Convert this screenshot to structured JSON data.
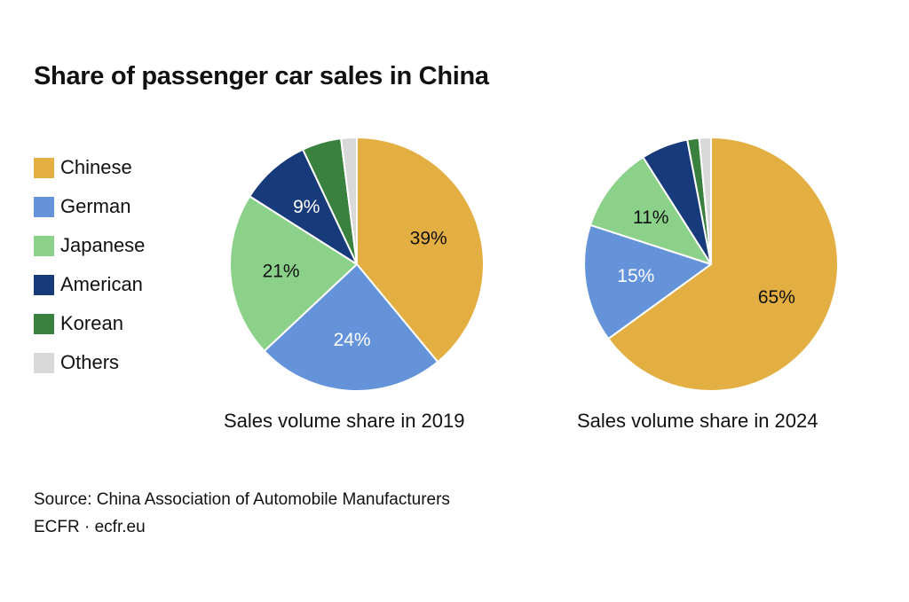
{
  "title": "Share of passenger car sales in China",
  "legend": [
    {
      "label": "Chinese",
      "color": "#E3AE42"
    },
    {
      "label": "German",
      "color": "#6493DA"
    },
    {
      "label": "Japanese",
      "color": "#8CD18A"
    },
    {
      "label": "American",
      "color": "#173B7A"
    },
    {
      "label": "Korean",
      "color": "#3A8140"
    },
    {
      "label": "Others",
      "color": "#D9D9D9"
    }
  ],
  "chart_data": [
    {
      "type": "pie",
      "caption": "Sales volume share in 2019",
      "slices": [
        {
          "name": "Chinese",
          "value": 39,
          "label": "39%",
          "color": "#E3AE42",
          "text_color": "#111111"
        },
        {
          "name": "German",
          "value": 24,
          "label": "24%",
          "color": "#6493DA",
          "text_color": "#ffffff"
        },
        {
          "name": "Japanese",
          "value": 21,
          "label": "21%",
          "color": "#8CD18A",
          "text_color": "#111111"
        },
        {
          "name": "American",
          "value": 9,
          "label": "9%",
          "color": "#173B7A",
          "text_color": "#ffffff"
        },
        {
          "name": "Korean",
          "value": 5,
          "label": "",
          "color": "#3A8140",
          "text_color": "#ffffff"
        },
        {
          "name": "Others",
          "value": 2,
          "label": "",
          "color": "#D9D9D9",
          "text_color": "#111111"
        }
      ]
    },
    {
      "type": "pie",
      "caption": "Sales volume share in 2024",
      "slices": [
        {
          "name": "Chinese",
          "value": 65,
          "label": "65%",
          "color": "#E3AE42",
          "text_color": "#111111"
        },
        {
          "name": "German",
          "value": 15,
          "label": "15%",
          "color": "#6493DA",
          "text_color": "#ffffff"
        },
        {
          "name": "Japanese",
          "value": 11,
          "label": "11%",
          "color": "#8CD18A",
          "text_color": "#111111"
        },
        {
          "name": "American",
          "value": 6,
          "label": "",
          "color": "#173B7A",
          "text_color": "#ffffff"
        },
        {
          "name": "Korean",
          "value": 1.5,
          "label": "",
          "color": "#3A8140",
          "text_color": "#ffffff"
        },
        {
          "name": "Others",
          "value": 1.5,
          "label": "",
          "color": "#D9D9D9",
          "text_color": "#111111"
        }
      ]
    }
  ],
  "footer": {
    "source": "Source: China Association of Automobile Manufacturers",
    "credit": "ECFR · ecfr.eu"
  }
}
